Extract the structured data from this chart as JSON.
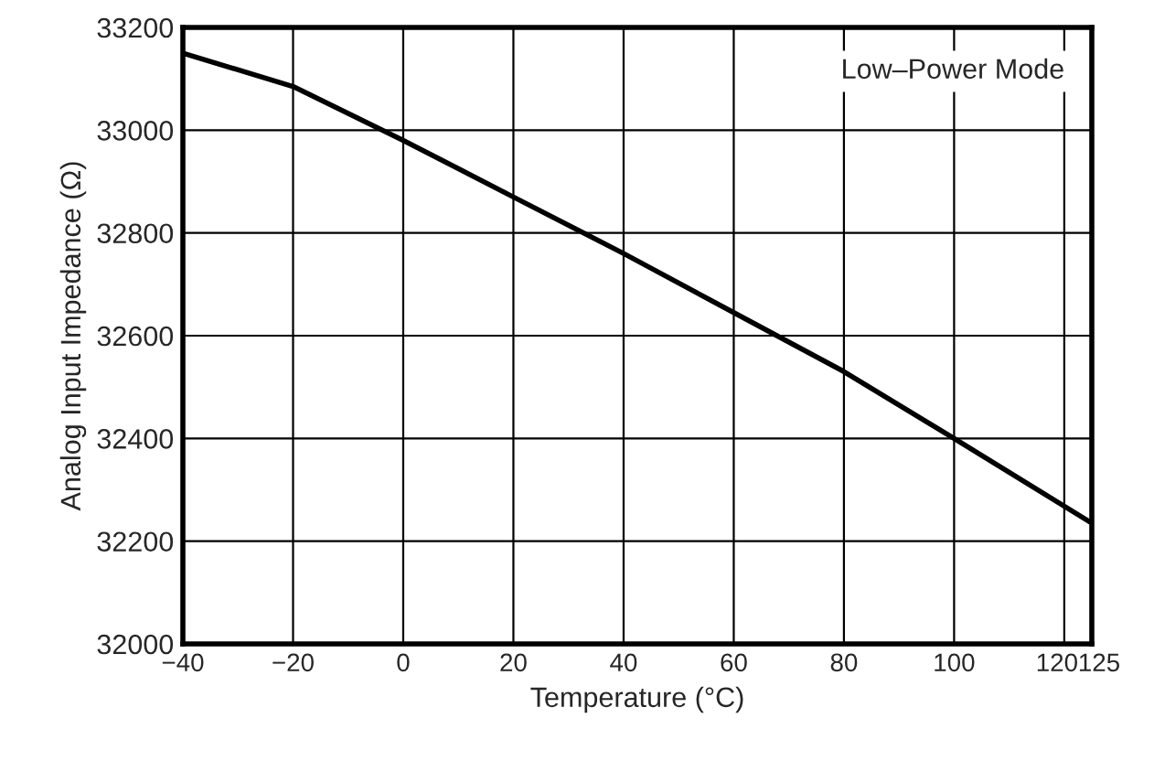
{
  "chart_data": {
    "type": "line",
    "xlabel": "Temperature (°C)",
    "ylabel": "Analog Input Impedance (Ω)",
    "x": [
      -40,
      -20,
      0,
      20,
      40,
      60,
      80,
      100,
      125
    ],
    "series": [
      {
        "color": "#000000",
        "values": [
          33150,
          33085,
          32980,
          32870,
          32760,
          32645,
          32530,
          32400,
          32235
        ]
      }
    ],
    "xlim": [
      -40,
      125
    ],
    "xticks": [
      {
        "value": -40,
        "label": "−40"
      },
      {
        "value": -20,
        "label": "−20"
      },
      0,
      20,
      40,
      60,
      80,
      100,
      120,
      125
    ],
    "ylim": [
      32000,
      33200
    ],
    "yticks": [
      32000,
      32200,
      32400,
      32600,
      32800,
      33000,
      33200
    ],
    "grid": true,
    "marker": "none",
    "line_style": "solid",
    "annotations": [
      "Low–Power Mode"
    ]
  }
}
